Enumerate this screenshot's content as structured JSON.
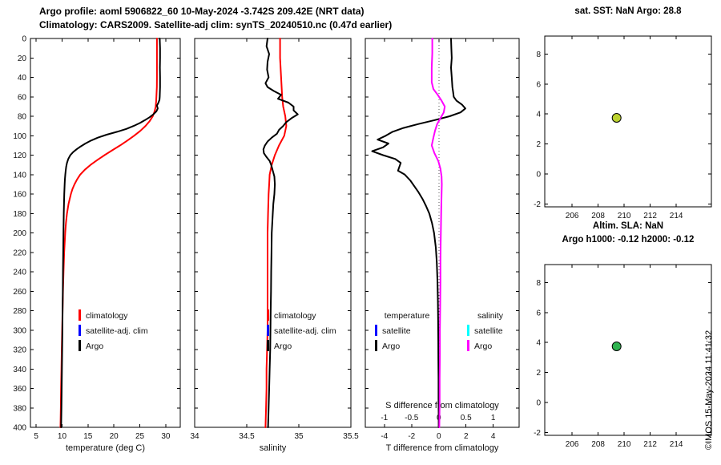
{
  "header": {
    "title_line1": "Argo profile: aoml 5906822_60 10-May-2024 -3.742S 209.42E (NRT data)",
    "title_line2": "Climatology: CARS2009. Satellite-adj clim: synTS_20240510.nc (0.47d earlier)"
  },
  "watermark": "©IMOS 15-May-2024 11:41:32",
  "colors": {
    "climatology": "#ff0000",
    "satellite_adj_clim": "#0000ff",
    "argo": "#000000",
    "satellite_T": "#0000ff",
    "satellite_S": "#00ffff",
    "argo_S_diff": "#ff00ff",
    "sst_marker": "#bcd22f",
    "sla_marker": "#2eb34f"
  },
  "chart_data": [
    {
      "id": "temperature-profile",
      "type": "line",
      "xlabel": "temperature (deg C)",
      "xlim": [
        3.9,
        32.8
      ],
      "xticks": [
        5,
        10,
        15,
        20,
        25,
        30
      ],
      "ylabel": "",
      "ylim": [
        0,
        400
      ],
      "y_direction": "reverse",
      "yticks": [
        0,
        20,
        40,
        60,
        80,
        100,
        120,
        140,
        160,
        180,
        200,
        220,
        240,
        260,
        280,
        300,
        320,
        340,
        360,
        380,
        400
      ],
      "grid": false,
      "legend": [
        {
          "label": "climatology",
          "color": "#ff0000"
        },
        {
          "label": "satellite-adj. clim",
          "color": "#0000ff"
        },
        {
          "label": "Argo",
          "color": "#000000"
        }
      ],
      "series": [
        {
          "name": "climatology",
          "color": "#ff0000",
          "depth_m": [
            0,
            10,
            20,
            30,
            40,
            50,
            60,
            65,
            70,
            75,
            80,
            85,
            90,
            95,
            100,
            105,
            110,
            115,
            120,
            125,
            130,
            135,
            140,
            145,
            150,
            155,
            160,
            170,
            180,
            190,
            200,
            220,
            240,
            260,
            280,
            300,
            320,
            340,
            360,
            380,
            400
          ],
          "values": [
            28.3,
            28.3,
            28.3,
            28.3,
            28.3,
            28.28,
            28.2,
            28.15,
            28.05,
            27.85,
            27.5,
            26.9,
            26.1,
            25.1,
            23.9,
            22.6,
            21.2,
            19.7,
            18.2,
            16.8,
            15.5,
            14.4,
            13.5,
            12.9,
            12.4,
            12.0,
            11.7,
            11.25,
            10.95,
            10.75,
            10.6,
            10.4,
            10.28,
            10.18,
            10.1,
            10.02,
            9.95,
            9.88,
            9.8,
            9.75,
            9.7
          ]
        },
        {
          "name": "Argo",
          "color": "#000000",
          "depth_m": [
            0,
            10,
            20,
            30,
            40,
            50,
            55,
            60,
            63,
            66,
            69,
            72,
            75,
            78,
            81,
            84,
            87,
            90,
            93,
            96,
            99,
            102,
            105,
            108,
            111,
            114,
            117,
            120,
            124,
            128,
            132,
            136,
            140,
            145,
            150,
            160,
            170,
            180,
            190,
            200,
            220,
            240,
            260,
            280,
            300,
            320,
            340,
            360,
            380,
            400
          ],
          "values": [
            28.85,
            28.9,
            28.9,
            28.88,
            28.9,
            28.9,
            28.88,
            28.85,
            28.8,
            28.6,
            28.3,
            28.45,
            28.2,
            27.6,
            26.9,
            26.0,
            25.0,
            23.8,
            22.4,
            20.6,
            18.6,
            16.9,
            15.6,
            14.5,
            13.6,
            12.8,
            12.1,
            11.6,
            11.2,
            10.95,
            10.8,
            10.7,
            10.62,
            10.55,
            10.5,
            10.42,
            10.38,
            10.33,
            10.3,
            10.27,
            10.22,
            10.18,
            10.14,
            10.1,
            10.06,
            10.02,
            9.98,
            9.93,
            9.88,
            9.82
          ]
        }
      ]
    },
    {
      "id": "salinity-profile",
      "type": "line",
      "xlabel": "salinity",
      "xlim": [
        34,
        35.5
      ],
      "xticks": [
        34,
        34.5,
        35,
        35.5
      ],
      "ylabel": "",
      "ylim": [
        0,
        400
      ],
      "y_direction": "reverse",
      "yticks": [
        0,
        20,
        40,
        60,
        80,
        100,
        120,
        140,
        160,
        180,
        200,
        220,
        240,
        260,
        280,
        300,
        320,
        340,
        360,
        380,
        400
      ],
      "grid": false,
      "legend": [
        {
          "label": "climatology",
          "color": "#ff0000"
        },
        {
          "label": "satellite-adj. clim",
          "color": "#0000ff"
        },
        {
          "label": "Argo",
          "color": "#000000"
        }
      ],
      "series": [
        {
          "name": "climatology",
          "color": "#ff0000",
          "depth_m": [
            0,
            20,
            40,
            60,
            70,
            80,
            90,
            100,
            110,
            120,
            130,
            140,
            150,
            160,
            180,
            200,
            220,
            240,
            260,
            280,
            300,
            320,
            340,
            360,
            380,
            400
          ],
          "values": [
            34.82,
            34.82,
            34.83,
            34.84,
            34.85,
            34.87,
            34.88,
            34.86,
            34.81,
            34.77,
            34.74,
            34.72,
            34.715,
            34.71,
            34.705,
            34.7,
            34.7,
            34.7,
            34.7,
            34.7,
            34.7,
            34.695,
            34.69,
            34.69,
            34.685,
            34.68
          ]
        },
        {
          "name": "Argo",
          "color": "#000000",
          "depth_m": [
            0,
            8,
            16,
            24,
            32,
            40,
            46,
            50,
            54,
            58,
            62,
            66,
            70,
            74,
            78,
            82,
            86,
            90,
            94,
            98,
            102,
            106,
            110,
            114,
            118,
            122,
            126,
            130,
            136,
            142,
            150,
            160,
            170,
            180,
            200,
            220,
            240,
            260,
            280,
            300,
            320,
            340,
            360,
            380,
            400
          ],
          "values": [
            34.7,
            34.69,
            34.715,
            34.7,
            34.695,
            34.71,
            34.68,
            34.7,
            34.76,
            34.83,
            34.8,
            34.9,
            34.95,
            34.95,
            34.99,
            34.93,
            34.88,
            34.85,
            34.81,
            34.79,
            34.74,
            34.7,
            34.675,
            34.66,
            34.665,
            34.69,
            34.72,
            34.735,
            34.75,
            34.765,
            34.77,
            34.765,
            34.755,
            34.75,
            34.74,
            34.738,
            34.735,
            34.733,
            34.73,
            34.728,
            34.725,
            34.72,
            34.715,
            34.71,
            34.705
          ]
        }
      ]
    },
    {
      "id": "difference-profile",
      "type": "line",
      "xlabel": "T difference from climatology",
      "xlim": [
        -5.4,
        5.9
      ],
      "xticks": [
        -4,
        -2,
        0,
        2,
        4
      ],
      "top_axis": {
        "label": "S difference from climatology",
        "ticks": [
          -1,
          -0.5,
          0,
          0.5,
          1
        ],
        "scale_factor": 4
      },
      "zero_line": true,
      "ylabel": "",
      "ylim": [
        0,
        400
      ],
      "y_direction": "reverse",
      "yticks": [
        0,
        20,
        40,
        60,
        80,
        100,
        120,
        140,
        160,
        180,
        200,
        220,
        240,
        260,
        280,
        300,
        320,
        340,
        360,
        380,
        400
      ],
      "grid": false,
      "legend_groups": [
        {
          "header": "temperature",
          "entries": [
            {
              "label": "satellite",
              "color": "#0000ff"
            },
            {
              "label": "Argo",
              "color": "#000000"
            }
          ]
        },
        {
          "header": "salinity",
          "entries": [
            {
              "label": "satellite",
              "color": "#00ffff"
            },
            {
              "label": "Argo",
              "color": "#ff00ff"
            }
          ]
        }
      ],
      "series": [
        {
          "name": "T difference Argo",
          "color": "#000000",
          "axis": "T",
          "depth_m": [
            0,
            10,
            20,
            30,
            40,
            50,
            55,
            60,
            64,
            68,
            72,
            76,
            80,
            84,
            88,
            92,
            96,
            100,
            104,
            108,
            112,
            116,
            120,
            124,
            128,
            132,
            136,
            140,
            146,
            152,
            158,
            165,
            172,
            180,
            190,
            200,
            215,
            230,
            250,
            270,
            290,
            310,
            330,
            350,
            370,
            390,
            400
          ],
          "values": [
            0.9,
            0.92,
            0.95,
            0.9,
            0.95,
            1.0,
            1.05,
            1.1,
            1.3,
            1.7,
            1.95,
            1.6,
            0.8,
            -0.3,
            -1.5,
            -2.6,
            -3.4,
            -3.9,
            -4.5,
            -3.7,
            -4.1,
            -4.9,
            -4.1,
            -3.2,
            -2.8,
            -2.9,
            -3.0,
            -2.5,
            -2.1,
            -1.8,
            -1.5,
            -1.2,
            -0.95,
            -0.7,
            -0.5,
            -0.35,
            -0.22,
            -0.15,
            -0.1,
            -0.07,
            -0.05,
            -0.04,
            -0.03,
            -0.02,
            -0.02,
            -0.01,
            -0.01
          ]
        },
        {
          "name": "S difference Argo",
          "color": "#ff00ff",
          "axis": "S",
          "depth_m": [
            0,
            15,
            30,
            45,
            52,
            58,
            64,
            70,
            76,
            82,
            88,
            95,
            102,
            110,
            118,
            126,
            134,
            142,
            150,
            160,
            175,
            190,
            210,
            230,
            250,
            275,
            300,
            325,
            350,
            375,
            400
          ],
          "values": [
            -0.12,
            -0.12,
            -0.13,
            -0.13,
            -0.1,
            -0.02,
            0.05,
            0.11,
            0.09,
            0.03,
            -0.03,
            -0.07,
            -0.1,
            -0.13,
            -0.08,
            -0.01,
            0.03,
            0.05,
            0.055,
            0.05,
            0.045,
            0.04,
            0.035,
            0.03,
            0.03,
            0.025,
            0.02,
            0.02,
            0.015,
            0.015,
            0.01
          ]
        }
      ]
    },
    {
      "id": "map-sst",
      "type": "scatter",
      "title": "sat. SST: NaN Argo: 28.8",
      "xlim": [
        203.9,
        216.7
      ],
      "xticks": [
        206,
        208,
        210,
        212,
        214
      ],
      "ylim": [
        -2.2,
        9.2
      ],
      "yticks": [
        -2,
        0,
        2,
        4,
        6,
        8
      ],
      "grid": false,
      "points": [
        {
          "x": 209.42,
          "y": 3.74,
          "color": "#bcd22f"
        }
      ]
    },
    {
      "id": "map-sla",
      "type": "scatter",
      "title_line1": "Altim. SLA: NaN",
      "title_line2": "Argo h1000: -0.12 h2000: -0.12",
      "xlim": [
        203.9,
        216.7
      ],
      "xticks": [
        206,
        208,
        210,
        212,
        214
      ],
      "ylim": [
        -2.2,
        9.2
      ],
      "yticks": [
        -2,
        0,
        2,
        4,
        6,
        8
      ],
      "grid": false,
      "points": [
        {
          "x": 209.42,
          "y": 3.74,
          "color": "#2eb34f"
        }
      ]
    }
  ]
}
